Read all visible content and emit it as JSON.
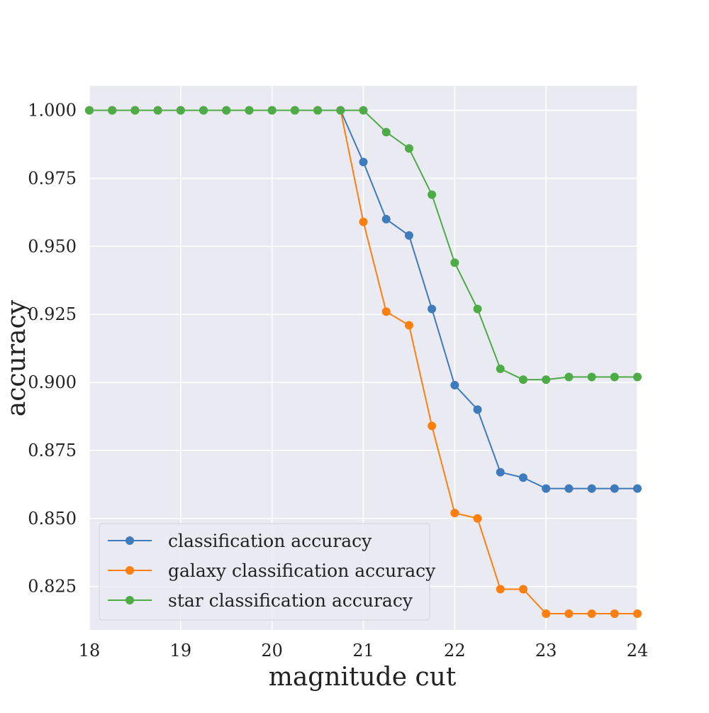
{
  "chart_data": {
    "type": "line",
    "title": "",
    "xlabel": "magnitude cut",
    "ylabel": "accuracy",
    "xlim": [
      18,
      24
    ],
    "ylim": [
      0.809,
      1.009
    ],
    "xticks": [
      18,
      19,
      20,
      21,
      22,
      23,
      24
    ],
    "xtick_labels": [
      "18",
      "19",
      "20",
      "21",
      "22",
      "23",
      "24"
    ],
    "yticks": [
      0.825,
      0.85,
      0.875,
      0.9,
      0.925,
      0.95,
      0.975,
      1.0
    ],
    "ytick_labels": [
      "0.825",
      "0.850",
      "0.875",
      "0.900",
      "0.925",
      "0.950",
      "0.975",
      "1.000"
    ],
    "grid": true,
    "legend_position": "lower-left",
    "x": [
      18.0,
      18.25,
      18.5,
      18.75,
      19.0,
      19.25,
      19.5,
      19.75,
      20.0,
      20.25,
      20.5,
      20.75,
      21.0,
      21.25,
      21.5,
      21.75,
      22.0,
      22.25,
      22.5,
      22.75,
      23.0,
      23.25,
      23.5,
      23.75,
      24.0
    ],
    "series": [
      {
        "name": "classification accuracy",
        "color": "#3d7bbd",
        "values": [
          1.0,
          1.0,
          1.0,
          1.0,
          1.0,
          1.0,
          1.0,
          1.0,
          1.0,
          1.0,
          1.0,
          1.0,
          0.981,
          0.96,
          0.954,
          0.927,
          0.899,
          0.89,
          0.867,
          0.865,
          0.861,
          0.861,
          0.861,
          0.861,
          0.861
        ]
      },
      {
        "name": "galaxy classification accuracy",
        "color": "#fe7f0e",
        "values": [
          1.0,
          1.0,
          1.0,
          1.0,
          1.0,
          1.0,
          1.0,
          1.0,
          1.0,
          1.0,
          1.0,
          1.0,
          0.959,
          0.926,
          0.921,
          0.884,
          0.852,
          0.85,
          0.824,
          0.824,
          0.815,
          0.815,
          0.815,
          0.815,
          0.815
        ]
      },
      {
        "name": "star classification accuracy",
        "color": "#4eac47",
        "values": [
          1.0,
          1.0,
          1.0,
          1.0,
          1.0,
          1.0,
          1.0,
          1.0,
          1.0,
          1.0,
          1.0,
          1.0,
          1.0,
          0.992,
          0.986,
          0.969,
          0.944,
          0.927,
          0.905,
          0.901,
          0.901,
          0.902,
          0.902,
          0.902,
          0.902
        ]
      }
    ]
  }
}
